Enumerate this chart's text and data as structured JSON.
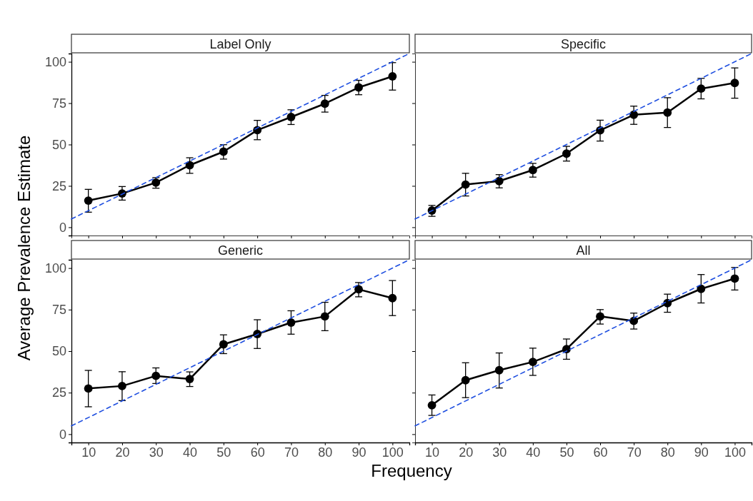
{
  "chart_data": [
    {
      "type": "line",
      "title": "Label Only",
      "ylabel": "Average Prevalence Estimate",
      "xlim": [
        5,
        105
      ],
      "xticks": [
        10,
        20,
        30,
        40,
        50,
        60,
        70,
        80,
        90,
        100
      ],
      "ylim": [
        -5,
        105
      ],
      "yticks": [
        0,
        25,
        50,
        75,
        100
      ],
      "tick_labels": "y",
      "marker": "circle",
      "grid": false,
      "series": [
        {
          "type": "line",
          "color": "#000000",
          "line_style": "solid",
          "x": [
            10,
            20,
            30,
            40,
            50,
            60,
            70,
            80,
            90,
            100
          ],
          "values": [
            16.1,
            20.4,
            27.0,
            37.5,
            45.7,
            58.7,
            66.6,
            74.7,
            84.5,
            91.2
          ],
          "errors": [
            [
              9.1,
              22.9
            ],
            [
              16.4,
              24.6
            ],
            [
              23.6,
              30
            ],
            [
              32.6,
              42
            ],
            [
              41.2,
              49.9
            ],
            [
              52.9,
              64.6
            ],
            [
              62.1,
              71
            ],
            [
              69.6,
              79.7
            ],
            [
              80.1,
              88.8
            ],
            [
              82.9,
              99.5
            ]
          ]
        },
        {
          "type": "line",
          "color": "#1f4fe0",
          "line_style": "dashed",
          "marker": "none",
          "x": [
            5,
            105
          ],
          "values": [
            5,
            105
          ]
        }
      ]
    },
    {
      "type": "line",
      "title": "Specific",
      "xlim": [
        5,
        105
      ],
      "xticks": [
        10,
        20,
        30,
        40,
        50,
        60,
        70,
        80,
        90,
        100
      ],
      "ylim": [
        -5,
        105
      ],
      "yticks": [
        0,
        25,
        50,
        75,
        100
      ],
      "tick_labels": false,
      "marker": "circle",
      "grid": false,
      "series": [
        {
          "type": "line",
          "color": "#000000",
          "line_style": "solid",
          "x": [
            10,
            20,
            30,
            40,
            50,
            60,
            70,
            80,
            90,
            100
          ],
          "values": [
            10.1,
            25.8,
            27.9,
            34.6,
            44.5,
            58.6,
            68,
            69.3,
            83.8,
            87.2
          ],
          "errors": [
            [
              6.6,
              13.2
            ],
            [
              18.9,
              32.6
            ],
            [
              23.8,
              31.8
            ],
            [
              30.3,
              38.6
            ],
            [
              40,
              48.9
            ],
            [
              52.1,
              64.7
            ],
            [
              62.2,
              73.2
            ],
            [
              60.3,
              78.3
            ],
            [
              77.6,
              90
            ],
            [
              78,
              96.3
            ]
          ]
        },
        {
          "type": "line",
          "color": "#1f4fe0",
          "line_style": "dashed",
          "marker": "none",
          "x": [
            5,
            105
          ],
          "values": [
            5,
            105
          ]
        }
      ]
    },
    {
      "type": "line",
      "title": "Generic",
      "xlabel": "Frequency",
      "xlim": [
        5,
        105
      ],
      "xticks": [
        10,
        20,
        30,
        40,
        50,
        60,
        70,
        80,
        90,
        100
      ],
      "ylim": [
        -5,
        105
      ],
      "yticks": [
        0,
        25,
        50,
        75,
        100
      ],
      "marker": "circle",
      "grid": false,
      "series": [
        {
          "type": "line",
          "color": "#000000",
          "line_style": "solid",
          "x": [
            10,
            20,
            30,
            40,
            50,
            60,
            70,
            80,
            90,
            100
          ],
          "values": [
            27.5,
            29.0,
            35.1,
            33.2,
            54.1,
            60.3,
            67.2,
            70.9,
            87.2,
            81.9
          ],
          "errors": [
            [
              16.5,
              38.4
            ],
            [
              20.2,
              37.6
            ],
            [
              30.5,
              39.9
            ],
            [
              28.7,
              37.5
            ],
            [
              48.5,
              59.8
            ],
            [
              51.6,
              68.9
            ],
            [
              60.2,
              74.3
            ],
            [
              62.3,
              79.4
            ],
            [
              82.7,
              91.3
            ],
            [
              71.4,
              92.5
            ]
          ]
        },
        {
          "type": "line",
          "color": "#1f4fe0",
          "line_style": "dashed",
          "marker": "none",
          "x": [
            5,
            105
          ],
          "values": [
            5,
            105
          ]
        }
      ]
    },
    {
      "type": "line",
      "title": "All",
      "xlim": [
        5,
        105
      ],
      "xticks": [
        10,
        20,
        30,
        40,
        50,
        60,
        70,
        80,
        90,
        100
      ],
      "ylim": [
        -5,
        105
      ],
      "yticks": [
        0,
        25,
        50,
        75,
        100
      ],
      "tick_labels": "x",
      "marker": "circle",
      "grid": false,
      "series": [
        {
          "type": "line",
          "color": "#000000",
          "line_style": "solid",
          "x": [
            10,
            20,
            30,
            40,
            50,
            60,
            70,
            80,
            90,
            100
          ],
          "values": [
            17.4,
            32.5,
            38.5,
            43.5,
            51.2,
            70.9,
            68.2,
            78.9,
            87.5,
            93.7
          ],
          "errors": [
            [
              11.3,
              23.6
            ],
            [
              22,
              43
            ],
            [
              27.8,
              48.9
            ],
            [
              35.4,
              51.8
            ],
            [
              45.1,
              57.3
            ],
            [
              66.3,
              75
            ],
            [
              63.3,
              72.9
            ],
            [
              73.4,
              84.3
            ],
            [
              79,
              96.1
            ],
            [
              86.8,
              100.4
            ]
          ]
        },
        {
          "type": "line",
          "color": "#1f4fe0",
          "line_style": "dashed",
          "marker": "none",
          "x": [
            5,
            105
          ],
          "values": [
            5,
            105
          ]
        }
      ]
    }
  ]
}
